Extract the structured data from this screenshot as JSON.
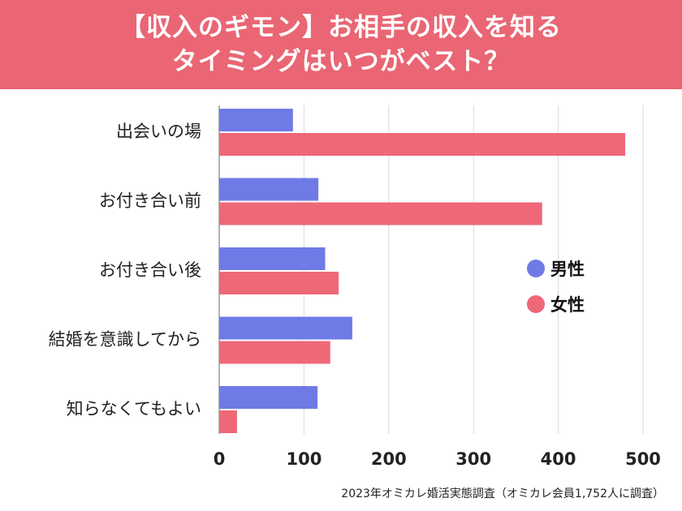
{
  "header": {
    "title_line1": "【収入のギモン】お相手の収入を知る",
    "title_line2": "タイミングはいつがベスト？",
    "background": "#ea6674"
  },
  "chart_data": {
    "type": "bar",
    "orientation": "horizontal",
    "categories": [
      "出会いの場",
      "お付き合い前",
      "お付き合い後",
      "結婚を意識してから",
      "知らなくてもよい"
    ],
    "series": [
      {
        "name": "男性",
        "color": "#6f7ae6",
        "values": [
          87,
          117,
          125,
          157,
          116
        ]
      },
      {
        "name": "女性",
        "color": "#ee6878",
        "values": [
          479,
          381,
          141,
          131,
          21
        ]
      }
    ],
    "xlim": [
      0,
      500
    ],
    "xticks": [
      "0",
      "100",
      "200",
      "300",
      "400",
      "500"
    ],
    "grid": "vertical",
    "legend_position": "right"
  },
  "footer": {
    "source": "2023年オミカレ婚活実態調査（オミカレ会員1,752人に調査）"
  }
}
